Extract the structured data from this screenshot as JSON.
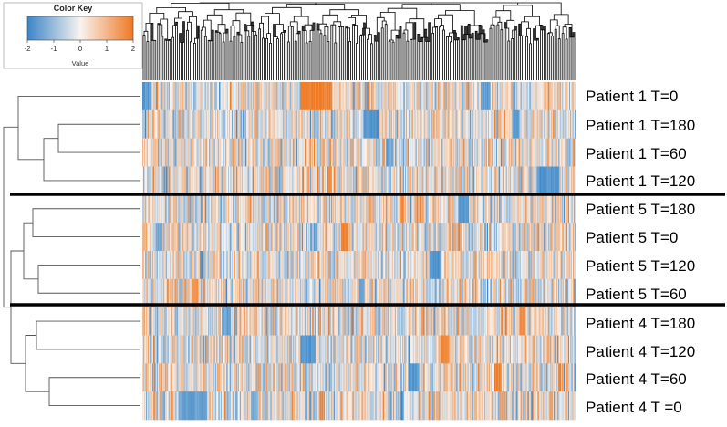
{
  "chart_data": {
    "type": "heatmap",
    "color_key": {
      "title": "Color Key",
      "label": "Value",
      "ticks": [
        "-2",
        "-1",
        "0",
        "1",
        "2"
      ],
      "range": [
        -2,
        2
      ],
      "colors": {
        "low": "#3a86c8",
        "mid": "#f8f3ef",
        "high": "#ee7a24"
      }
    },
    "rows": [
      "Patient 1 T=0",
      "Patient 1 T=180",
      "Patient 1 T=60",
      "Patient 1 T=120",
      "Patient 5 T=180",
      "Patient 5 T=0",
      "Patient 5 T=120",
      "Patient 5 T=60",
      "Patient 4 T=180",
      "Patient 4 T=120",
      "Patient 4 T=60",
      "Patient 4 T =0"
    ],
    "groups": [
      {
        "rows": [
          0,
          1,
          2,
          3
        ]
      },
      {
        "rows": [
          4,
          5,
          6,
          7
        ]
      },
      {
        "rows": [
          8,
          9,
          10,
          11
        ]
      }
    ],
    "row_dendrogram": true,
    "column_dendrogram": true,
    "column_count": 480
  }
}
